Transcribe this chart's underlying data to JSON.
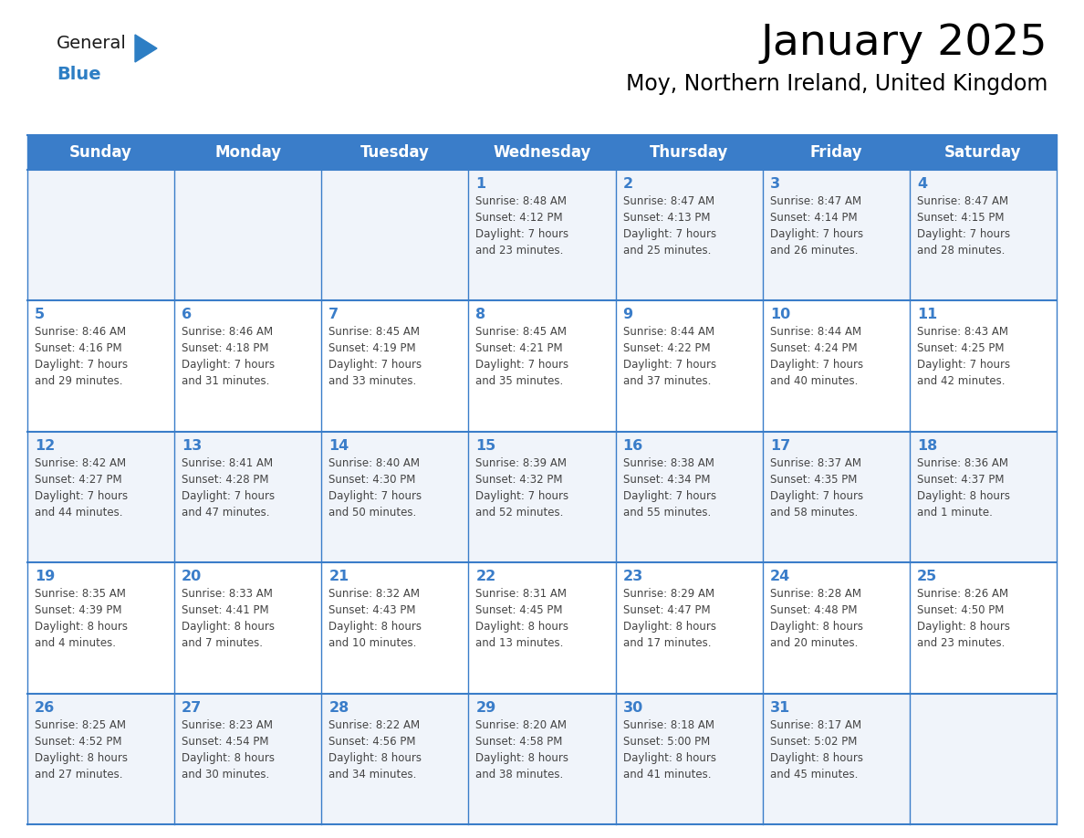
{
  "title": "January 2025",
  "subtitle": "Moy, Northern Ireland, United Kingdom",
  "days_of_week": [
    "Sunday",
    "Monday",
    "Tuesday",
    "Wednesday",
    "Thursday",
    "Friday",
    "Saturday"
  ],
  "header_bg": "#3A7DC9",
  "header_text_color": "#FFFFFF",
  "cell_bg_odd": "#F0F4FA",
  "cell_bg_even": "#FFFFFF",
  "cell_text_color": "#444444",
  "day_num_color": "#3A7DC9",
  "border_color": "#3A7DC9",
  "logo_general_color": "#1a1a1a",
  "logo_blue_color": "#2D7EC4",
  "calendar": [
    [
      {
        "day": null,
        "info": ""
      },
      {
        "day": null,
        "info": ""
      },
      {
        "day": null,
        "info": ""
      },
      {
        "day": 1,
        "info": "Sunrise: 8:48 AM\nSunset: 4:12 PM\nDaylight: 7 hours\nand 23 minutes."
      },
      {
        "day": 2,
        "info": "Sunrise: 8:47 AM\nSunset: 4:13 PM\nDaylight: 7 hours\nand 25 minutes."
      },
      {
        "day": 3,
        "info": "Sunrise: 8:47 AM\nSunset: 4:14 PM\nDaylight: 7 hours\nand 26 minutes."
      },
      {
        "day": 4,
        "info": "Sunrise: 8:47 AM\nSunset: 4:15 PM\nDaylight: 7 hours\nand 28 minutes."
      }
    ],
    [
      {
        "day": 5,
        "info": "Sunrise: 8:46 AM\nSunset: 4:16 PM\nDaylight: 7 hours\nand 29 minutes."
      },
      {
        "day": 6,
        "info": "Sunrise: 8:46 AM\nSunset: 4:18 PM\nDaylight: 7 hours\nand 31 minutes."
      },
      {
        "day": 7,
        "info": "Sunrise: 8:45 AM\nSunset: 4:19 PM\nDaylight: 7 hours\nand 33 minutes."
      },
      {
        "day": 8,
        "info": "Sunrise: 8:45 AM\nSunset: 4:21 PM\nDaylight: 7 hours\nand 35 minutes."
      },
      {
        "day": 9,
        "info": "Sunrise: 8:44 AM\nSunset: 4:22 PM\nDaylight: 7 hours\nand 37 minutes."
      },
      {
        "day": 10,
        "info": "Sunrise: 8:44 AM\nSunset: 4:24 PM\nDaylight: 7 hours\nand 40 minutes."
      },
      {
        "day": 11,
        "info": "Sunrise: 8:43 AM\nSunset: 4:25 PM\nDaylight: 7 hours\nand 42 minutes."
      }
    ],
    [
      {
        "day": 12,
        "info": "Sunrise: 8:42 AM\nSunset: 4:27 PM\nDaylight: 7 hours\nand 44 minutes."
      },
      {
        "day": 13,
        "info": "Sunrise: 8:41 AM\nSunset: 4:28 PM\nDaylight: 7 hours\nand 47 minutes."
      },
      {
        "day": 14,
        "info": "Sunrise: 8:40 AM\nSunset: 4:30 PM\nDaylight: 7 hours\nand 50 minutes."
      },
      {
        "day": 15,
        "info": "Sunrise: 8:39 AM\nSunset: 4:32 PM\nDaylight: 7 hours\nand 52 minutes."
      },
      {
        "day": 16,
        "info": "Sunrise: 8:38 AM\nSunset: 4:34 PM\nDaylight: 7 hours\nand 55 minutes."
      },
      {
        "day": 17,
        "info": "Sunrise: 8:37 AM\nSunset: 4:35 PM\nDaylight: 7 hours\nand 58 minutes."
      },
      {
        "day": 18,
        "info": "Sunrise: 8:36 AM\nSunset: 4:37 PM\nDaylight: 8 hours\nand 1 minute."
      }
    ],
    [
      {
        "day": 19,
        "info": "Sunrise: 8:35 AM\nSunset: 4:39 PM\nDaylight: 8 hours\nand 4 minutes."
      },
      {
        "day": 20,
        "info": "Sunrise: 8:33 AM\nSunset: 4:41 PM\nDaylight: 8 hours\nand 7 minutes."
      },
      {
        "day": 21,
        "info": "Sunrise: 8:32 AM\nSunset: 4:43 PM\nDaylight: 8 hours\nand 10 minutes."
      },
      {
        "day": 22,
        "info": "Sunrise: 8:31 AM\nSunset: 4:45 PM\nDaylight: 8 hours\nand 13 minutes."
      },
      {
        "day": 23,
        "info": "Sunrise: 8:29 AM\nSunset: 4:47 PM\nDaylight: 8 hours\nand 17 minutes."
      },
      {
        "day": 24,
        "info": "Sunrise: 8:28 AM\nSunset: 4:48 PM\nDaylight: 8 hours\nand 20 minutes."
      },
      {
        "day": 25,
        "info": "Sunrise: 8:26 AM\nSunset: 4:50 PM\nDaylight: 8 hours\nand 23 minutes."
      }
    ],
    [
      {
        "day": 26,
        "info": "Sunrise: 8:25 AM\nSunset: 4:52 PM\nDaylight: 8 hours\nand 27 minutes."
      },
      {
        "day": 27,
        "info": "Sunrise: 8:23 AM\nSunset: 4:54 PM\nDaylight: 8 hours\nand 30 minutes."
      },
      {
        "day": 28,
        "info": "Sunrise: 8:22 AM\nSunset: 4:56 PM\nDaylight: 8 hours\nand 34 minutes."
      },
      {
        "day": 29,
        "info": "Sunrise: 8:20 AM\nSunset: 4:58 PM\nDaylight: 8 hours\nand 38 minutes."
      },
      {
        "day": 30,
        "info": "Sunrise: 8:18 AM\nSunset: 5:00 PM\nDaylight: 8 hours\nand 41 minutes."
      },
      {
        "day": 31,
        "info": "Sunrise: 8:17 AM\nSunset: 5:02 PM\nDaylight: 8 hours\nand 45 minutes."
      },
      {
        "day": null,
        "info": ""
      }
    ]
  ]
}
